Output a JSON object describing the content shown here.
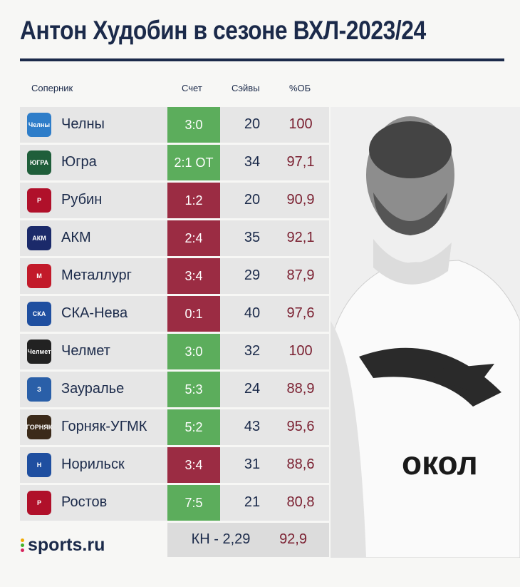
{
  "header": {
    "title": "Антон Худобин в сезоне ВХЛ-2023/24"
  },
  "columns": {
    "opponent": "Соперник",
    "score": "Счет",
    "saves": "Сэйвы",
    "save_pct": "%ОБ"
  },
  "colors": {
    "win": "#5cad5c",
    "loss": "#9b2c43",
    "navy": "#1b2a4a",
    "pct_text": "#7a1f30"
  },
  "chart_data": {
    "type": "table",
    "title": "Антон Худобин в сезоне ВХЛ-2023/24",
    "columns": [
      "Соперник",
      "Счет",
      "Сэйвы",
      "%ОБ"
    ],
    "rows": [
      {
        "team": "Челны",
        "logo": "Челны",
        "score": "3:0",
        "result": "win",
        "saves": "20",
        "pct": "100"
      },
      {
        "team": "Югра",
        "logo": "ЮГРА",
        "score": "2:1 ОТ",
        "result": "win",
        "saves": "34",
        "pct": "97,1"
      },
      {
        "team": "Рубин",
        "logo": "Р",
        "score": "1:2",
        "result": "loss",
        "saves": "20",
        "pct": "90,9"
      },
      {
        "team": "АКМ",
        "logo": "АКМ",
        "score": "2:4",
        "result": "loss",
        "saves": "35",
        "pct": "92,1"
      },
      {
        "team": "Металлург",
        "logo": "М",
        "score": "3:4",
        "result": "loss",
        "saves": "29",
        "pct": "87,9"
      },
      {
        "team": "СКА-Нева",
        "logo": "СКА",
        "score": "0:1",
        "result": "loss",
        "saves": "40",
        "pct": "97,6"
      },
      {
        "team": "Челмет",
        "logo": "Челмет",
        "score": "3:0",
        "result": "win",
        "saves": "32",
        "pct": "100"
      },
      {
        "team": "Зауралье",
        "logo": "З",
        "score": "5:3",
        "result": "win",
        "saves": "24",
        "pct": "88,9"
      },
      {
        "team": "Горняк-УГМК",
        "logo": "ГОРНЯК",
        "score": "5:2",
        "result": "win",
        "saves": "43",
        "pct": "95,6"
      },
      {
        "team": "Норильск",
        "logo": "Н",
        "score": "3:4",
        "result": "loss",
        "saves": "31",
        "pct": "88,6"
      },
      {
        "team": "Ростов",
        "logo": "Р",
        "score": "7:5",
        "result": "win",
        "saves": "21",
        "pct": "80,8"
      }
    ],
    "summary": {
      "gaa": "КН - 2,29",
      "save_pct": "92,9"
    }
  },
  "footer": {
    "brand": "sports.ru"
  }
}
